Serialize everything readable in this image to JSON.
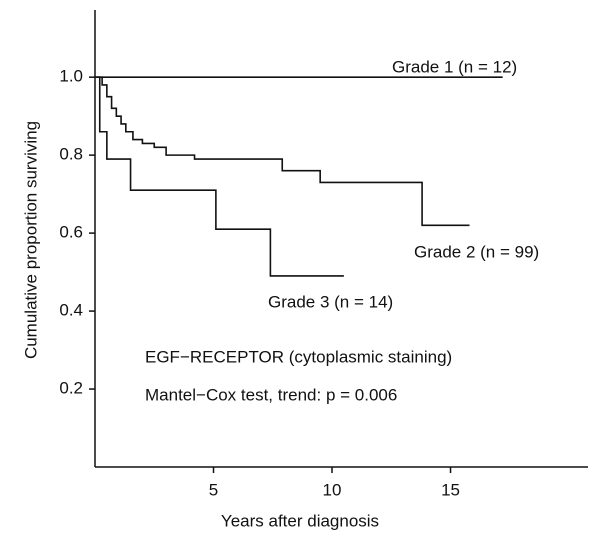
{
  "chart_data": {
    "type": "step",
    "x_label": "Years after diagnosis",
    "y_label": "Cumulative proportion surviving",
    "xlim": [
      0,
      20.8
    ],
    "ylim": [
      0,
      1.18
    ],
    "xticks": [
      5,
      10,
      15
    ],
    "yticks": [
      0.2,
      0.4,
      0.6,
      0.8,
      {
        "value": 1.0,
        "label": "1.0"
      }
    ],
    "series": [
      {
        "name": "Grade 1 (n = 12)",
        "color": "#111111",
        "x": [
          0,
          17.2
        ],
        "values": [
          1.0,
          1.0
        ]
      },
      {
        "name": "Grade 2 (n = 99)",
        "color": "#111111",
        "x": [
          0,
          0.3,
          0.5,
          0.7,
          0.9,
          1.1,
          1.3,
          1.6,
          2.0,
          2.5,
          3.0,
          4.2,
          7.9,
          9.5,
          13.8,
          15.8
        ],
        "values": [
          1.0,
          0.98,
          0.95,
          0.92,
          0.9,
          0.88,
          0.86,
          0.84,
          0.83,
          0.82,
          0.8,
          0.79,
          0.76,
          0.73,
          0.62,
          0.62
        ]
      },
      {
        "name": "Grade 3 (n = 14)",
        "color": "#111111",
        "x": [
          0,
          0.2,
          0.5,
          1.5,
          5.1,
          7.4,
          10.5
        ],
        "values": [
          1.0,
          0.86,
          0.79,
          0.71,
          0.61,
          0.49,
          0.49
        ]
      }
    ],
    "annotations": [
      "EGF−RECEPTOR (cytoplasmic staining)",
      "Mantel−Cox test, trend: p = 0.006"
    ]
  }
}
